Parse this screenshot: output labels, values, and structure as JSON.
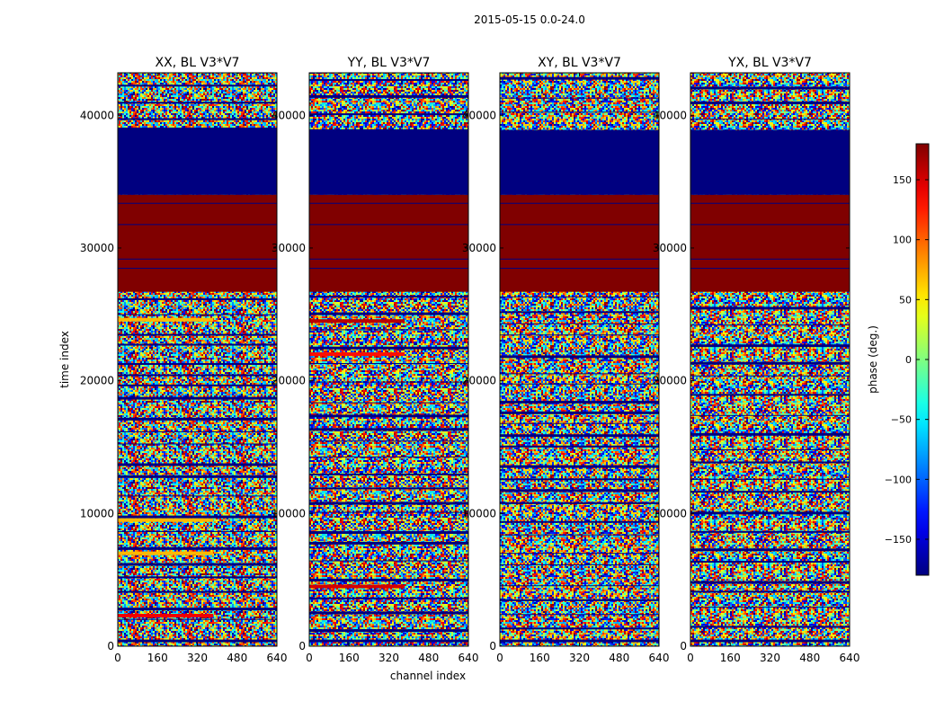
{
  "suptitle": "2015-05-15 0.0-24.0",
  "chart_data": {
    "type": "heatmap",
    "xlabel": "channel index",
    "ylabel": "time index",
    "xlim": [
      0,
      640
    ],
    "ylim": [
      0,
      43200
    ],
    "x_ticks": [
      0,
      160,
      320,
      480,
      640
    ],
    "y_ticks": [
      0,
      10000,
      20000,
      30000,
      40000
    ],
    "colorbar": {
      "label": "phase (deg.)",
      "range": [
        -180,
        180
      ],
      "ticks": [
        150,
        100,
        50,
        0,
        -50,
        -100,
        -150
      ],
      "tick_labels": [
        "150",
        "100",
        "50",
        "0",
        "−50",
        "−100",
        "−150"
      ],
      "colormap": "jet"
    },
    "panels": [
      {
        "title": "XX, BL V3*V7",
        "flagged_ranges": [
          {
            "t0": 34000,
            "t1": 38900,
            "phase": -180
          },
          {
            "t0": 26700,
            "t1": 34000,
            "phase": 180
          }
        ],
        "bright_rows": [
          {
            "t": 24600,
            "phase": 70
          },
          {
            "t": 9500,
            "phase": 70
          },
          {
            "t": 7000,
            "phase": 70
          },
          {
            "t": 2300,
            "phase": 140
          }
        ]
      },
      {
        "title": "YY, BL V3*V7",
        "flagged_ranges": [
          {
            "t0": 34000,
            "t1": 38900,
            "phase": -180
          },
          {
            "t0": 26700,
            "t1": 34000,
            "phase": 180
          }
        ],
        "bright_rows": [
          {
            "t": 24500,
            "phase": 160
          },
          {
            "t": 22000,
            "phase": 130
          },
          {
            "t": 4500,
            "phase": 150
          }
        ]
      },
      {
        "title": "XY, BL V3*V7",
        "flagged_ranges": [
          {
            "t0": 34000,
            "t1": 38900,
            "phase": -180
          },
          {
            "t0": 26700,
            "t1": 34000,
            "phase": 180
          }
        ],
        "bright_rows": []
      },
      {
        "title": "YX, BL V3*V7",
        "flagged_ranges": [
          {
            "t0": 34000,
            "t1": 38900,
            "phase": -180
          },
          {
            "t0": 26700,
            "t1": 34000,
            "phase": 180
          }
        ],
        "bright_rows": []
      }
    ]
  }
}
